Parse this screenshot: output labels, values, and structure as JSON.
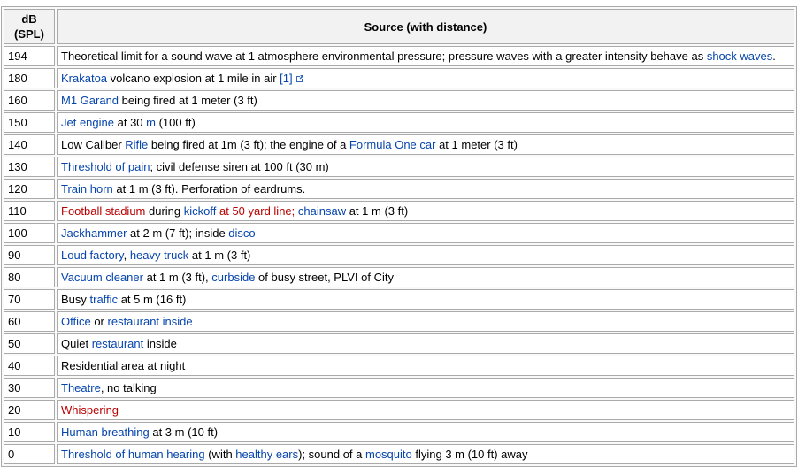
{
  "colors": {
    "link": "#0645ad",
    "redlink": "#ba0000",
    "border": "#aaaaaa",
    "table_bg": "#f9f9f9",
    "header_bg": "#f2f2f2",
    "cell_bg": "#ffffff"
  },
  "table": {
    "headers": [
      "dB (SPL)",
      "Source (with distance)"
    ],
    "rows": [
      {
        "db": "194",
        "source": [
          {
            "t": "Theoretical limit for a sound wave at 1 atmosphere environmental pressure; pressure waves with a greater intensity behave as ",
            "k": "plain"
          },
          {
            "t": "shock waves",
            "k": "link"
          },
          {
            "t": ".",
            "k": "plain"
          }
        ]
      },
      {
        "db": "180",
        "source": [
          {
            "t": "Krakatoa",
            "k": "link"
          },
          {
            "t": " volcano explosion at 1 mile in air ",
            "k": "plain"
          },
          {
            "t": "[1]",
            "k": "link"
          },
          {
            "t": "",
            "k": "ext"
          }
        ]
      },
      {
        "db": "160",
        "source": [
          {
            "t": "M1 Garand",
            "k": "link"
          },
          {
            "t": " being fired at 1 meter (3 ft)",
            "k": "plain"
          }
        ]
      },
      {
        "db": "150",
        "source": [
          {
            "t": "Jet engine",
            "k": "link"
          },
          {
            "t": " at 30 ",
            "k": "plain"
          },
          {
            "t": "m",
            "k": "link"
          },
          {
            "t": " (100 ft)",
            "k": "plain"
          }
        ]
      },
      {
        "db": "140",
        "source": [
          {
            "t": "Low Caliber ",
            "k": "plain"
          },
          {
            "t": "Rifle",
            "k": "link"
          },
          {
            "t": " being fired at 1m (3 ft); the engine of a ",
            "k": "plain"
          },
          {
            "t": "Formula One car",
            "k": "link"
          },
          {
            "t": " at 1 meter (3 ft)",
            "k": "plain"
          }
        ]
      },
      {
        "db": "130",
        "source": [
          {
            "t": "Threshold of pain",
            "k": "link"
          },
          {
            "t": "; civil defense siren at 100 ft (30 m)",
            "k": "plain"
          }
        ]
      },
      {
        "db": "120",
        "source": [
          {
            "t": "Train horn",
            "k": "link"
          },
          {
            "t": " at 1 m (3 ft). Perforation of eardrums.",
            "k": "plain"
          }
        ]
      },
      {
        "db": "110",
        "source": [
          {
            "t": "Football stadium",
            "k": "redlink"
          },
          {
            "t": " during ",
            "k": "plain"
          },
          {
            "t": "kickoff",
            "k": "link"
          },
          {
            "t": " at 50 yard line;",
            "k": "redlink"
          },
          {
            "t": " ",
            "k": "plain"
          },
          {
            "t": "chainsaw",
            "k": "link"
          },
          {
            "t": " at 1 m (3 ft)",
            "k": "plain"
          }
        ]
      },
      {
        "db": "100",
        "source": [
          {
            "t": "Jackhammer",
            "k": "link"
          },
          {
            "t": " at 2 m (7 ft); inside ",
            "k": "plain"
          },
          {
            "t": "disco",
            "k": "link"
          }
        ]
      },
      {
        "db": "90",
        "source": [
          {
            "t": "Loud factory",
            "k": "link"
          },
          {
            "t": ", ",
            "k": "plain"
          },
          {
            "t": "heavy truck",
            "k": "link"
          },
          {
            "t": " at 1 m (3 ft)",
            "k": "plain"
          }
        ]
      },
      {
        "db": "80",
        "source": [
          {
            "t": "Vacuum cleaner",
            "k": "link"
          },
          {
            "t": " at 1 m (3 ft), ",
            "k": "plain"
          },
          {
            "t": "curbside",
            "k": "link"
          },
          {
            "t": " of busy street, PLVI of City",
            "k": "plain"
          }
        ]
      },
      {
        "db": "70",
        "source": [
          {
            "t": "Busy ",
            "k": "plain"
          },
          {
            "t": "traffic",
            "k": "link"
          },
          {
            "t": " at 5 m (16 ft)",
            "k": "plain"
          }
        ]
      },
      {
        "db": "60",
        "source": [
          {
            "t": "Office",
            "k": "link"
          },
          {
            "t": " or ",
            "k": "plain"
          },
          {
            "t": "restaurant inside",
            "k": "link"
          }
        ]
      },
      {
        "db": "50",
        "source": [
          {
            "t": "Quiet ",
            "k": "plain"
          },
          {
            "t": "restaurant",
            "k": "link"
          },
          {
            "t": " inside",
            "k": "plain"
          }
        ]
      },
      {
        "db": "40",
        "source": [
          {
            "t": "Residential area at night",
            "k": "plain"
          }
        ]
      },
      {
        "db": "30",
        "source": [
          {
            "t": "Theatre",
            "k": "link"
          },
          {
            "t": ", no talking",
            "k": "plain"
          }
        ]
      },
      {
        "db": "20",
        "source": [
          {
            "t": "Whispering",
            "k": "redlink"
          }
        ]
      },
      {
        "db": "10",
        "source": [
          {
            "t": "Human breathing",
            "k": "link"
          },
          {
            "t": " at 3 m (10 ft)",
            "k": "plain"
          }
        ]
      },
      {
        "db": "0",
        "source": [
          {
            "t": "Threshold of human hearing",
            "k": "link"
          },
          {
            "t": " (with ",
            "k": "plain"
          },
          {
            "t": "healthy ears",
            "k": "link"
          },
          {
            "t": "); sound of a ",
            "k": "plain"
          },
          {
            "t": "mosquito",
            "k": "link"
          },
          {
            "t": " flying 3 m (10 ft) away",
            "k": "plain"
          }
        ]
      }
    ]
  }
}
